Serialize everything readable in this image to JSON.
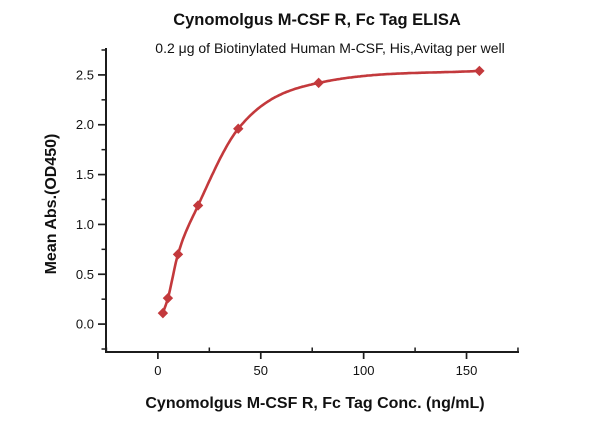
{
  "chart_data": {
    "type": "scatter",
    "title": "Cynomolgus M-CSF R, Fc Tag ELISA",
    "subtitle": "0.2 μg of Biotinylated Human M-CSF, His,Avitag per well",
    "xlabel": "Cynomolgus M-CSF R, Fc Tag Conc. (ng/mL)",
    "ylabel": "Mean Abs.(OD450)",
    "x": [
      2.44,
      4.88,
      9.77,
      19.53,
      39.06,
      78.13,
      156.25
    ],
    "y": [
      0.11,
      0.26,
      0.7,
      1.19,
      1.96,
      2.42,
      2.54
    ],
    "xlim": [
      -25.7,
      175.5
    ],
    "ylim": [
      -0.28,
      2.77
    ],
    "x_major_ticks": [
      0,
      50,
      100,
      150
    ],
    "x_tick_labels": [
      "0",
      "50",
      "100",
      "150"
    ],
    "x_minor_ticks": [
      -25,
      25,
      75,
      125,
      175
    ],
    "y_major_ticks": [
      0,
      0.5,
      1.0,
      1.5,
      2.0,
      2.5
    ],
    "y_tick_labels": [
      "0.0",
      "0.5",
      "1.0",
      "1.5",
      "2.0",
      "2.5"
    ],
    "y_minor_ticks": [
      -0.25,
      0.25,
      0.75,
      1.25,
      1.75,
      2.25,
      2.75
    ],
    "grid": false,
    "legend": "none",
    "marker": "diamond",
    "curve": "smooth sigmoidal fit through points",
    "colors": {
      "curve": "#c3393c",
      "marker": "#c3393c",
      "axis": "#1c1c1c",
      "text": "#111111",
      "background": "#ffffff"
    }
  }
}
